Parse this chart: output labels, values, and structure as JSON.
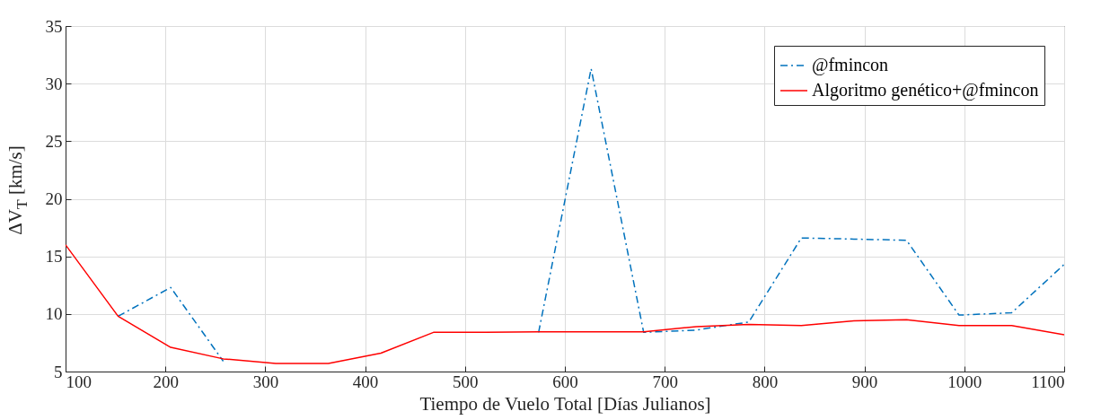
{
  "chart_data": {
    "type": "line",
    "xlabel": "Tiempo de Vuelo Total [Días Julianos]",
    "ylabel": "ΔV$_{T}$ [km/s]",
    "x": [
      100,
      152.6,
      205.3,
      257.9,
      310.5,
      363.2,
      415.8,
      468.4,
      521.1,
      573.7,
      626.3,
      678.9,
      731.6,
      784.2,
      836.8,
      889.5,
      942.1,
      994.7,
      1047.4,
      1100
    ],
    "series": [
      {
        "name": "@fmincon",
        "color": "#0072bd",
        "line_style": "dashed",
        "values": [
          null,
          9.8,
          12.3,
          5.9,
          null,
          null,
          null,
          null,
          null,
          8.4,
          31.3,
          8.4,
          8.6,
          9.3,
          16.6,
          16.5,
          16.4,
          9.9,
          10.1,
          14.3
        ]
      },
      {
        "name": "Algoritmo genético+@fmincon",
        "color": "#ff0000",
        "line_style": "solid",
        "values": [
          16.0,
          9.8,
          7.1,
          6.1,
          5.7,
          5.7,
          6.6,
          8.4,
          8.4,
          8.45,
          8.45,
          8.45,
          8.9,
          9.1,
          9.0,
          9.4,
          9.5,
          9.0,
          9.0,
          8.2
        ]
      }
    ],
    "xlim": [
      100,
      1100
    ],
    "xticks": [
      100,
      200,
      300,
      400,
      500,
      600,
      700,
      800,
      900,
      1000,
      1100
    ],
    "ylim": [
      5,
      35
    ],
    "yticks": [
      5,
      10,
      15,
      20,
      25,
      30,
      35
    ],
    "grid": true,
    "legend": "top right",
    "marker": "none"
  }
}
